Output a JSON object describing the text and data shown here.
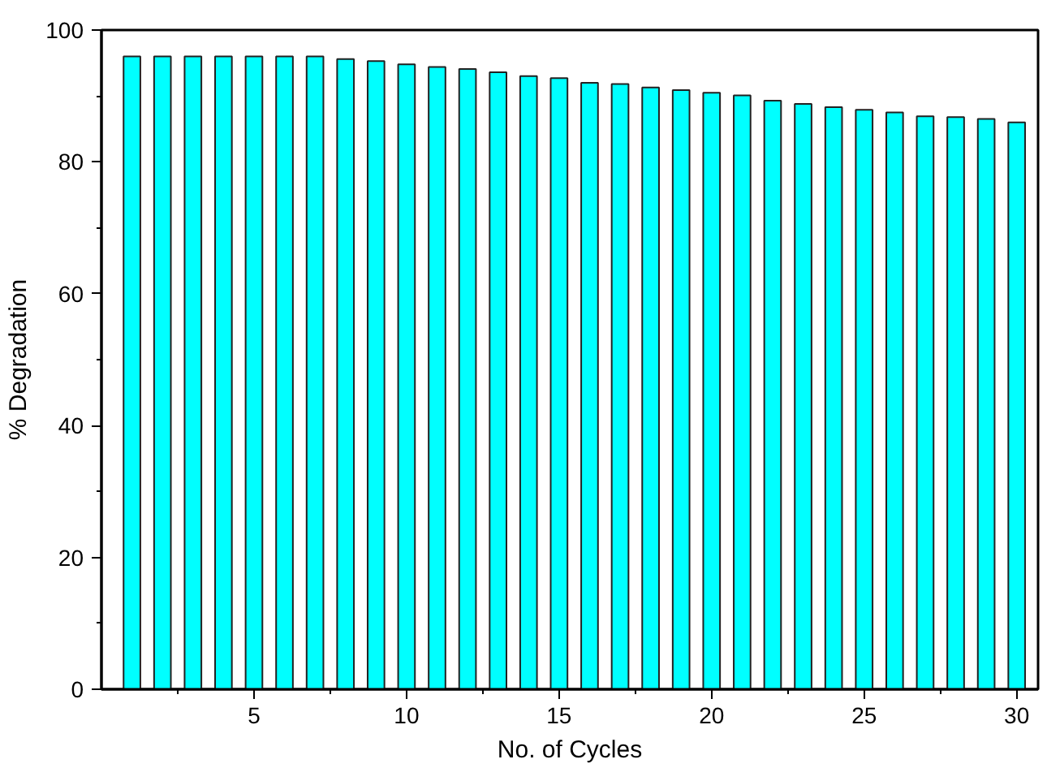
{
  "chart_data": {
    "type": "bar",
    "xlabel": "No. of Cycles",
    "ylabel": "% Degradation",
    "x": [
      1,
      2,
      3,
      4,
      5,
      6,
      7,
      8,
      9,
      10,
      11,
      12,
      13,
      14,
      15,
      16,
      17,
      18,
      19,
      20,
      21,
      22,
      23,
      24,
      25,
      26,
      27,
      28,
      29,
      30
    ],
    "values": [
      96,
      96,
      96,
      96,
      96,
      96,
      96,
      95.6,
      95.3,
      94.8,
      94.4,
      94.1,
      93.6,
      93,
      92.7,
      92,
      91.8,
      91.3,
      90.9,
      90.5,
      90.1,
      89.3,
      88.8,
      88.3,
      87.9,
      87.5,
      86.9,
      86.8,
      86.5,
      86
    ],
    "color": "#00ffff",
    "xlim": [
      0,
      30.7
    ],
    "xticks": [
      5,
      10,
      15,
      20,
      25,
      30
    ],
    "ylim": [
      0,
      100
    ],
    "yticks": [
      0,
      20,
      40,
      60,
      80,
      100
    ],
    "grid": false
  }
}
